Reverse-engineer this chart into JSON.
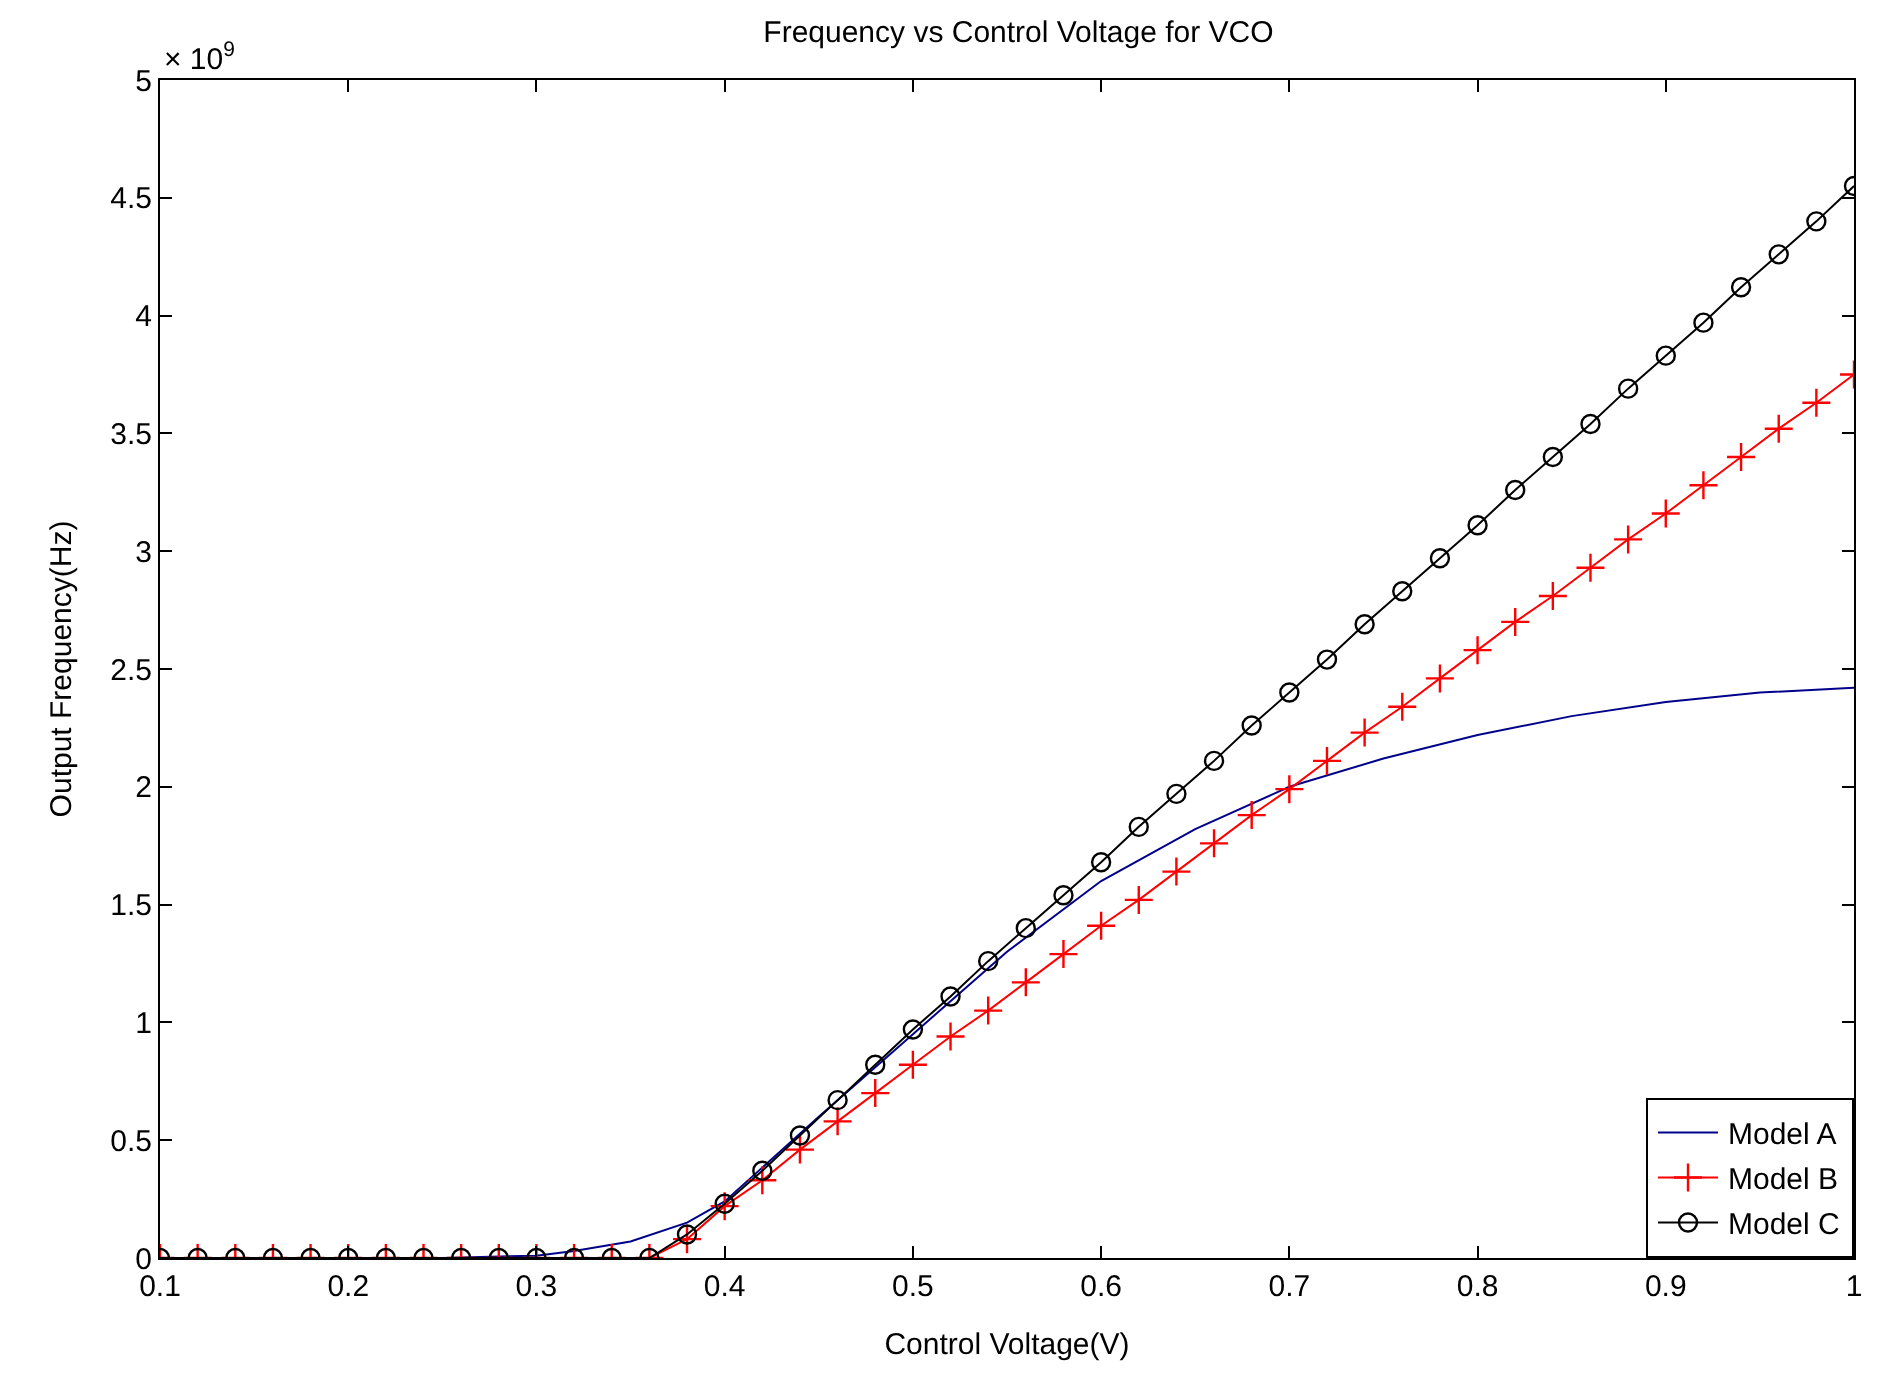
{
  "chart_data": {
    "type": "line",
    "title": "Frequency vs Control Voltage for VCO",
    "xlabel": "Control Voltage(V)",
    "ylabel": "Output Frequency(Hz)",
    "annotations": [
      "× 10$^{9}$"
    ],
    "xlim": [
      0.1,
      1.0
    ],
    "xticks": [
      0.1,
      0.2,
      0.3,
      0.4,
      0.5,
      0.6,
      0.7,
      0.8,
      0.9,
      1
    ],
    "ylim": [
      0,
      5
    ],
    "yticks": [
      0,
      0.5,
      1,
      1.5,
      2,
      2.5,
      3,
      3.5,
      4,
      4.5,
      5
    ],
    "grid": false,
    "legend": "bottom right",
    "series": [
      {
        "name": "Model A",
        "color": "#00008b",
        "marker": "none",
        "x": [
          0.1,
          0.2,
          0.25,
          0.3,
          0.32,
          0.35,
          0.38,
          0.4,
          0.45,
          0.5,
          0.55,
          0.6,
          0.65,
          0.7,
          0.75,
          0.8,
          0.85,
          0.9,
          0.95,
          1.0
        ],
        "values": [
          0,
          0,
          0,
          0.01,
          0.03,
          0.07,
          0.15,
          0.24,
          0.6,
          0.95,
          1.3,
          1.6,
          1.82,
          2.0,
          2.12,
          2.22,
          2.3,
          2.36,
          2.4,
          2.42
        ]
      },
      {
        "name": "Model B",
        "color": "#ff0000",
        "marker": "cross",
        "x": [
          0.1,
          0.12,
          0.14,
          0.16,
          0.18,
          0.2,
          0.22,
          0.24,
          0.26,
          0.28,
          0.3,
          0.32,
          0.34,
          0.36,
          0.38,
          0.4,
          0.42,
          0.44,
          0.46,
          0.48,
          0.5,
          0.52,
          0.54,
          0.56,
          0.58,
          0.6,
          0.62,
          0.64,
          0.66,
          0.68,
          0.7,
          0.72,
          0.74,
          0.76,
          0.78,
          0.8,
          0.82,
          0.84,
          0.86,
          0.88,
          0.9,
          0.92,
          0.94,
          0.96,
          0.98,
          1.0
        ],
        "values": [
          0,
          0,
          0,
          0,
          0,
          0,
          0,
          0,
          0,
          0,
          0,
          0,
          0,
          0,
          0.08,
          0.22,
          0.33,
          0.46,
          0.58,
          0.7,
          0.82,
          0.94,
          1.05,
          1.17,
          1.29,
          1.41,
          1.52,
          1.64,
          1.76,
          1.88,
          1.99,
          2.11,
          2.23,
          2.34,
          2.46,
          2.58,
          2.7,
          2.81,
          2.93,
          3.05,
          3.16,
          3.28,
          3.4,
          3.52,
          3.63,
          3.75
        ]
      },
      {
        "name": "Model C",
        "color": "#000000",
        "marker": "circle",
        "x": [
          0.1,
          0.12,
          0.14,
          0.16,
          0.18,
          0.2,
          0.22,
          0.24,
          0.26,
          0.28,
          0.3,
          0.32,
          0.34,
          0.36,
          0.38,
          0.4,
          0.42,
          0.44,
          0.46,
          0.48,
          0.5,
          0.52,
          0.54,
          0.56,
          0.58,
          0.6,
          0.62,
          0.64,
          0.66,
          0.68,
          0.7,
          0.72,
          0.74,
          0.76,
          0.78,
          0.8,
          0.82,
          0.84,
          0.86,
          0.88,
          0.9,
          0.92,
          0.94,
          0.96,
          0.98,
          1.0
        ],
        "values": [
          0,
          0,
          0,
          0,
          0,
          0,
          0,
          0,
          0,
          0,
          0,
          0,
          0,
          0,
          0.1,
          0.23,
          0.37,
          0.52,
          0.67,
          0.82,
          0.97,
          1.11,
          1.26,
          1.4,
          1.54,
          1.68,
          1.83,
          1.97,
          2.11,
          2.26,
          2.4,
          2.54,
          2.69,
          2.83,
          2.97,
          3.11,
          3.26,
          3.4,
          3.54,
          3.69,
          3.83,
          3.97,
          4.12,
          4.26,
          4.4,
          4.55
        ]
      }
    ]
  }
}
